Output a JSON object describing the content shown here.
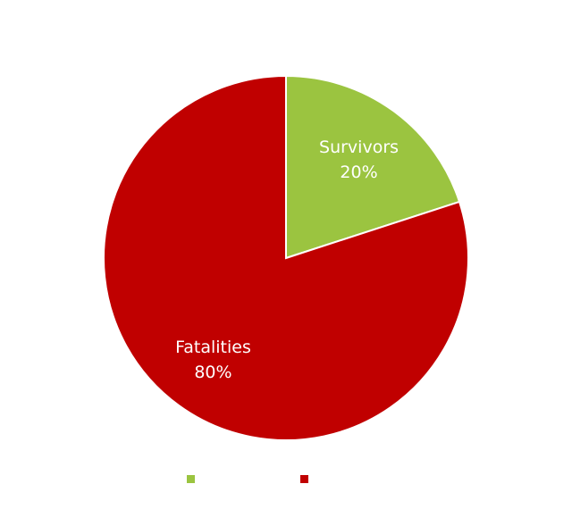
{
  "chart_data": {
    "type": "pie",
    "categories": [
      "Survivors",
      "Fatalities"
    ],
    "values": [
      20,
      80
    ],
    "data_labels": [
      "20%",
      "80%"
    ],
    "colors": [
      "#9bc440",
      "#c00000"
    ],
    "legend": {
      "placement": "bottom",
      "entries": [
        "",
        ""
      ]
    },
    "title": ""
  }
}
